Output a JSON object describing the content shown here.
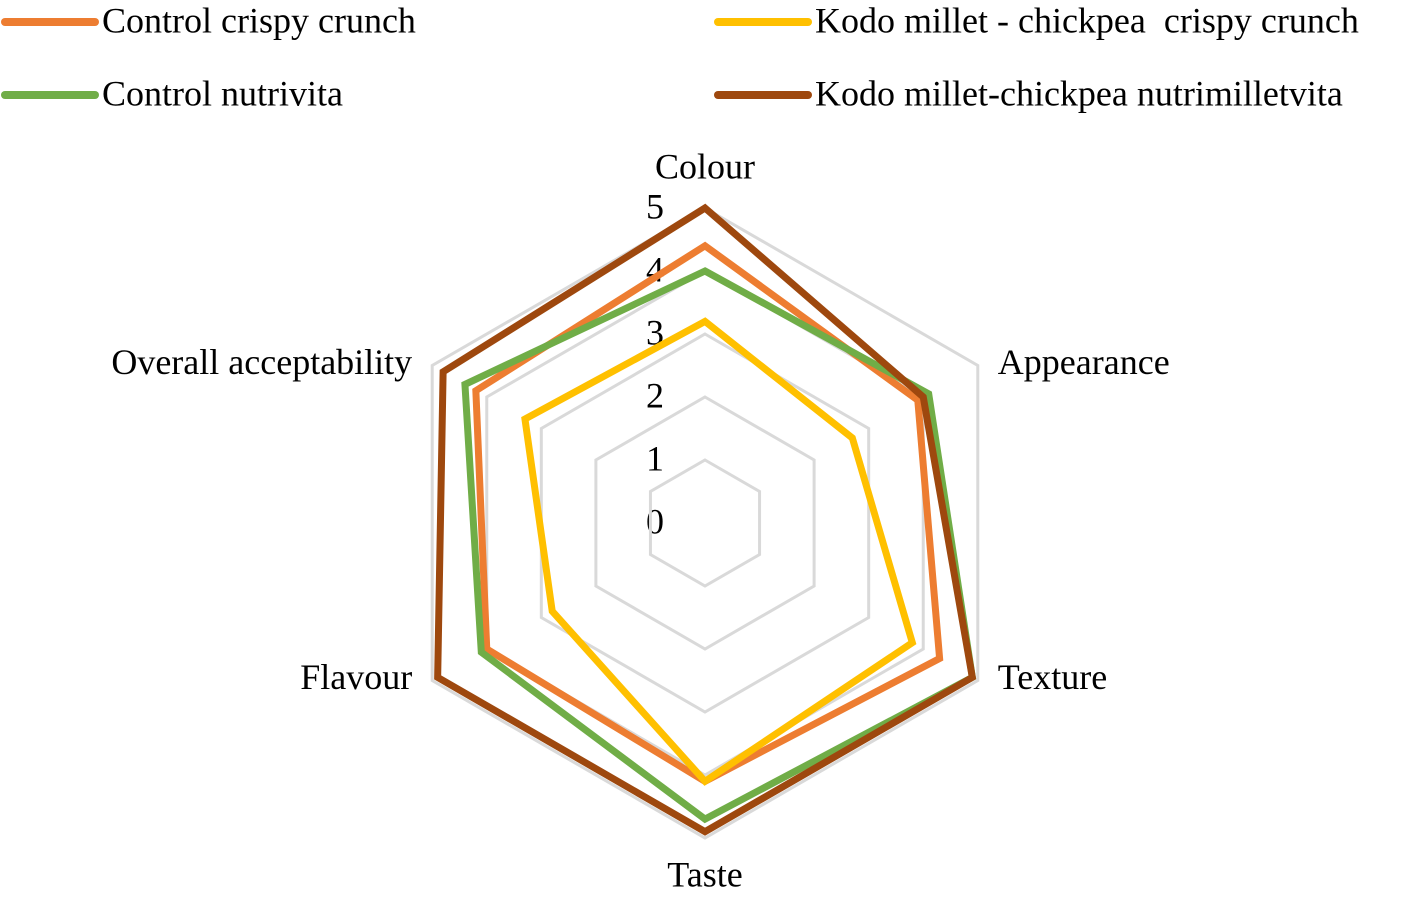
{
  "chart_data": {
    "type": "radar",
    "categories": [
      "Colour",
      "Appearance",
      "Texture",
      "Taste",
      "Flavour",
      "Overall acceptability"
    ],
    "series": [
      {
        "name": "Control crispy crunch",
        "color": "#ed7d31",
        "values": [
          4.4,
          3.9,
          4.3,
          4.1,
          4.0,
          4.2
        ]
      },
      {
        "name": "Kodo millet - chickpea  crispy crunch",
        "color": "#ffc000",
        "values": [
          3.2,
          2.7,
          3.8,
          4.1,
          2.8,
          3.3
        ]
      },
      {
        "name": "Control nutrivita",
        "color": "#70ad47",
        "values": [
          4.0,
          4.1,
          4.9,
          4.7,
          4.1,
          4.4
        ]
      },
      {
        "name": "Kodo millet-chickpea nutrimilletvita",
        "color": "#9e480e",
        "values": [
          5.0,
          4.0,
          4.9,
          4.9,
          4.9,
          4.8
        ]
      }
    ],
    "ylim": [
      0,
      5
    ],
    "yticks": [
      0,
      1,
      2,
      3,
      4,
      5
    ],
    "grid": true
  }
}
